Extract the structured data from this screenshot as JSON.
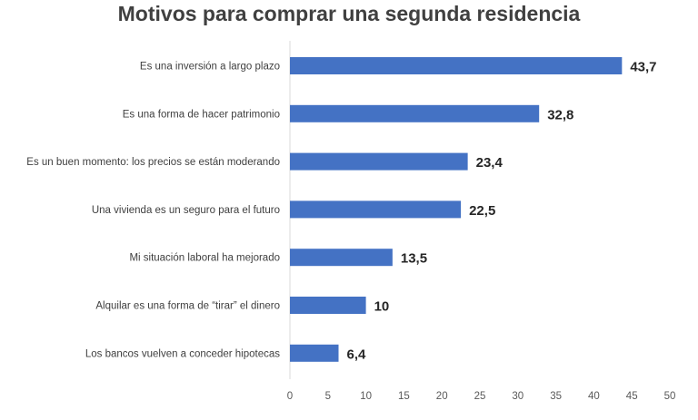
{
  "chart_data": {
    "type": "bar",
    "orientation": "horizontal",
    "title": "Motivos para comprar una segunda residencia",
    "xlabel": "",
    "ylabel": "",
    "categories": [
      "Es una inversión a largo plazo",
      "Es una forma de hacer patrimonio",
      "Es un buen momento: los precios se están moderando",
      "Una vivienda es un seguro para el futuro",
      "Mi situación laboral ha mejorado",
      "Alquilar es una forma de “tirar” el dinero",
      "Los bancos vuelven a conceder hipotecas"
    ],
    "values": [
      43.7,
      32.8,
      23.4,
      22.5,
      13.5,
      10,
      6.4
    ],
    "data_labels": [
      "43,7",
      "32,8",
      "23,4",
      "22,5",
      "13,5",
      "10",
      "6,4"
    ],
    "xlim": [
      0,
      50
    ],
    "xticks": [
      "0",
      "5",
      "10",
      "15",
      "20",
      "25",
      "30",
      "35",
      "40",
      "45",
      "50"
    ],
    "grid": false,
    "legend": "none",
    "bar_color": "#4472C4"
  }
}
